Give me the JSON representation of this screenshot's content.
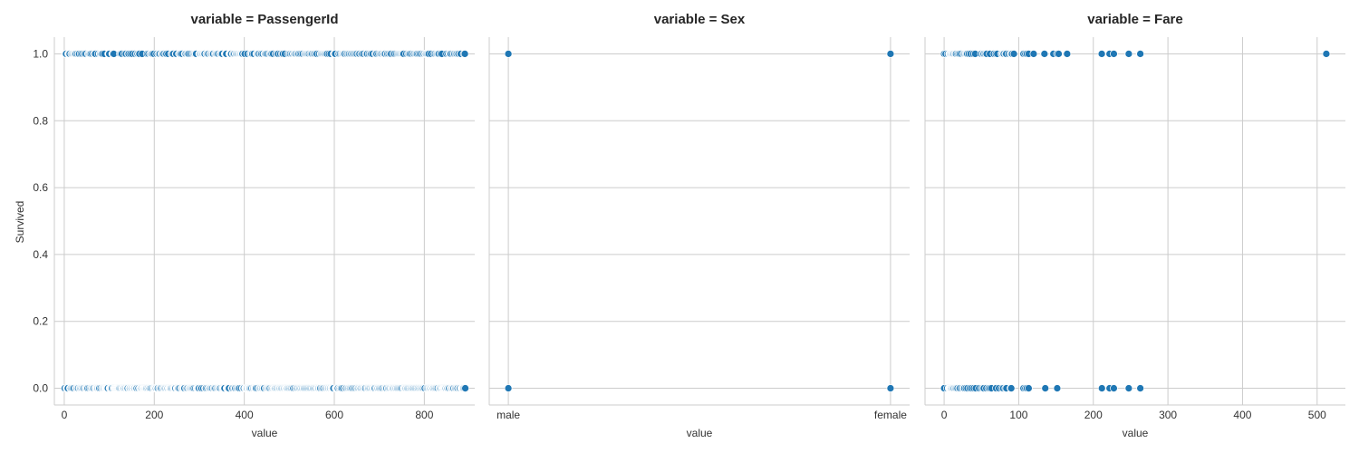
{
  "figure": {
    "ylabel": "Survived",
    "point_color": "#1f77b4",
    "grid_color": "#cccccc"
  },
  "chart_data": [
    {
      "type": "scatter",
      "title": "variable = PassengerId",
      "xlabel": "value",
      "ylabel": "Survived",
      "xlim": [
        -22,
        912
      ],
      "ylim": [
        -0.05,
        1.05
      ],
      "xticks": [
        0,
        200,
        400,
        600,
        800
      ],
      "yticks": [
        0.0,
        0.2,
        0.4,
        0.6,
        0.8,
        1.0
      ],
      "ytick_labels": [
        "0.0",
        "0.2",
        "0.4",
        "0.6",
        "0.8",
        "1.0"
      ],
      "grid": true,
      "points": {
        "survived_1": [
          2,
          3,
          4,
          9,
          10,
          11,
          12,
          16,
          18,
          20,
          22,
          23,
          24,
          26,
          29,
          32,
          33,
          37,
          40,
          44,
          45,
          48,
          53,
          54,
          56,
          57,
          59,
          62,
          66,
          67,
          69,
          75,
          79,
          80,
          82,
          83,
          85,
          89,
          98,
          99,
          100,
          107,
          108,
          110,
          124,
          126,
          128,
          134,
          137,
          142,
          143,
          147,
          151,
          157,
          162,
          163,
          166,
          167,
          173,
          184,
          187,
          191,
          193,
          195,
          196,
          199,
          205,
          209,
          210,
          212,
          216,
          217,
          219,
          221,
          225,
          227,
          231,
          238,
          240,
          242,
          248,
          249,
          255,
          257,
          258,
          259,
          262,
          268,
          269,
          270,
          273,
          275,
          276,
          280,
          284,
          287,
          289,
          290,
          292,
          293,
          300,
          301,
          302,
          304,
          306,
          307,
          308,
          310,
          311,
          312,
          316,
          317,
          319,
          320,
          324,
          326,
          328,
          330,
          331,
          335,
          337,
          338,
          340,
          342,
          346,
          348,
          349,
          351,
          357,
          358,
          359,
          360,
          367,
          368,
          369,
          370,
          371,
          375,
          376,
          378,
          381,
          382,
          384,
          386,
          388,
          390,
          391,
          392,
          394,
          395,
          396,
          400,
          401,
          407,
          413,
          415,
          417,
          418,
          421,
          427,
          428,
          430,
          431,
          432,
          436,
          438,
          441,
          445,
          446,
          447,
          449,
          452,
          456,
          458,
          459,
          461,
          464,
          470,
          473,
          475,
          480,
          484,
          486,
          490,
          497,
          500,
          502,
          505,
          507,
          510,
          511,
          513,
          514,
          517,
          519,
          521,
          524,
          527,
          530,
          534,
          536,
          538,
          540,
          542,
          544,
          547,
          549,
          551,
          554,
          556,
          559,
          561,
          566,
          570,
          571,
          573,
          575,
          577,
          578,
          580,
          582,
          584,
          588,
          592,
          599,
          600,
          601,
          602,
          609,
          610,
          613,
          616,
          618,
          619,
          621,
          622,
          623,
          627,
          628,
          631,
          633,
          636,
          638,
          641,
          642,
          645,
          646,
          649,
          650,
          654,
          656,
          660,
          662,
          665,
          670,
          671,
          673,
          677,
          680,
          682,
          685,
          691,
          692,
          694,
          698,
          701,
          703,
          705,
          708,
          709,
          711,
          713,
          717,
          718,
          721,
          724,
          726,
          731,
          734,
          738,
          741,
          743,
          745,
          747,
          749,
          751,
          752,
          754,
          760,
          764,
          766,
          768,
          771,
          775,
          777,
          780,
          782,
          784,
          787,
          790,
          793,
          797,
          799,
          802,
          803,
          804,
          806,
          808,
          810,
          815,
          821,
          824,
          827,
          829,
          831,
          832,
          836,
          839,
          849,
          853,
          856,
          857,
          859,
          863,
          866,
          867,
          870,
          872,
          875,
          876,
          880,
          881,
          888,
          890
        ],
        "survived_0": [
          1,
          5,
          6,
          7,
          8,
          13,
          14,
          15,
          17,
          19,
          21,
          25,
          27,
          28,
          30,
          31,
          34,
          35,
          36,
          38,
          39,
          41,
          42,
          43,
          46,
          47,
          49,
          50,
          51,
          52,
          55,
          58,
          60,
          61,
          63,
          64,
          65,
          68,
          70,
          71,
          72,
          73,
          74,
          76,
          77,
          78,
          81,
          84,
          86,
          87,
          88,
          90,
          91,
          92,
          93,
          94,
          95,
          96,
          97,
          101,
          102,
          103,
          104,
          105,
          106,
          109,
          111,
          112,
          113,
          114,
          115,
          116,
          117,
          118,
          119,
          120,
          121,
          122,
          123,
          125,
          127,
          129,
          130,
          131,
          132,
          133,
          135,
          136,
          138,
          139,
          140,
          141,
          144,
          145,
          146,
          148,
          149,
          150,
          152,
          153,
          154,
          155,
          156,
          158,
          159,
          160,
          161,
          164,
          165,
          168,
          169,
          170,
          171,
          172,
          174,
          175,
          176,
          177,
          178,
          179,
          180,
          181,
          182,
          183,
          185,
          186,
          188,
          189,
          190,
          192,
          194,
          197,
          198,
          200,
          201,
          202,
          203,
          204,
          206,
          207,
          208,
          211,
          213,
          214,
          215,
          218,
          220,
          222,
          223,
          224,
          226,
          228,
          229,
          230,
          232,
          233,
          234,
          235,
          236,
          237,
          239,
          241,
          243,
          244,
          245,
          246,
          247,
          250,
          251,
          252,
          253,
          254,
          256,
          260,
          261,
          263,
          264,
          265,
          266,
          267,
          271,
          272,
          274,
          277,
          278,
          279,
          281,
          282,
          283,
          285,
          286,
          288,
          291,
          294,
          295,
          296,
          297,
          298,
          299,
          303,
          305,
          309,
          313,
          314,
          315,
          318,
          321,
          322,
          323,
          325,
          327,
          329,
          332,
          333,
          334,
          336,
          339,
          341,
          343,
          344,
          345,
          347,
          350,
          352,
          353,
          354,
          355,
          356,
          361,
          362,
          363,
          364,
          365,
          366,
          372,
          373,
          374,
          377,
          379,
          380,
          383,
          385,
          387,
          389,
          393,
          397,
          398,
          399,
          402,
          403,
          404,
          405,
          406,
          408,
          409,
          410,
          411,
          412,
          414,
          416,
          419,
          420,
          422,
          423,
          424,
          425,
          426,
          429,
          433,
          434,
          435,
          437,
          439,
          440,
          442,
          443,
          444,
          448,
          450,
          451,
          453,
          454,
          455,
          457,
          460,
          462,
          463,
          465,
          466,
          467,
          468,
          469,
          471,
          472,
          474,
          476,
          477,
          478,
          479,
          481,
          482,
          483,
          485,
          487,
          488,
          489,
          491,
          492,
          493,
          494,
          495,
          496,
          498,
          499,
          501,
          503,
          504,
          506,
          508,
          509,
          512,
          515,
          516,
          518,
          520,
          522,
          523,
          525,
          526,
          528,
          529,
          531,
          532,
          533,
          535,
          537,
          539,
          541,
          543,
          545,
          546,
          548,
          550,
          552,
          553,
          555,
          557,
          558,
          560,
          562,
          563,
          564,
          565,
          567,
          568,
          569,
          572,
          574,
          576,
          579,
          581,
          583,
          585,
          586,
          587,
          589,
          590,
          591,
          593,
          594,
          595,
          596,
          597,
          598,
          603,
          604,
          605,
          606,
          607,
          608,
          611,
          612,
          614,
          615,
          617,
          620,
          624,
          625,
          626,
          629,
          630,
          632,
          634,
          635,
          637,
          639,
          640,
          643,
          644,
          647,
          648,
          651,
          652,
          653,
          655,
          657,
          658,
          659,
          661,
          663,
          664,
          666,
          667,
          668,
          669,
          672,
          674,
          675,
          676,
          678,
          679,
          681,
          683,
          684,
          686,
          687,
          688,
          689,
          690,
          693,
          695,
          696,
          697,
          699,
          700,
          702,
          704,
          706,
          707,
          710,
          712,
          714,
          715,
          716,
          719,
          720,
          722,
          723,
          725,
          727,
          728,
          729,
          730,
          732,
          733,
          735,
          736,
          737,
          739,
          740,
          742,
          744,
          746,
          748,
          750,
          753,
          755,
          756,
          757,
          758,
          759,
          761,
          762,
          763,
          765,
          767,
          769,
          770,
          772,
          773,
          774,
          776,
          778,
          779,
          781,
          783,
          785,
          786,
          788,
          789,
          791,
          792,
          794,
          795,
          796,
          798,
          800,
          801,
          805,
          807,
          809,
          811,
          812,
          813,
          814,
          816,
          817,
          818,
          819,
          820,
          822,
          823,
          825,
          826,
          828,
          830,
          833,
          834,
          835,
          837,
          838,
          840,
          841,
          842,
          843,
          844,
          845,
          846,
          847,
          848,
          850,
          851,
          852,
          854,
          855,
          858,
          860,
          861,
          862,
          864,
          865,
          868,
          869,
          871,
          873,
          874,
          877,
          878,
          879,
          882,
          883,
          884,
          885,
          886,
          887,
          889,
          891
        ]
      }
    },
    {
      "type": "scatter",
      "title": "variable = Sex",
      "xlabel": "value",
      "categories": [
        "male",
        "female"
      ],
      "xlim": [
        -0.05,
        1.05
      ],
      "ylim": [
        -0.05,
        1.05
      ],
      "grid": true,
      "points": [
        {
          "x": "male",
          "y": 1
        },
        {
          "x": "male",
          "y": 0
        },
        {
          "x": "female",
          "y": 1
        },
        {
          "x": "female",
          "y": 0
        }
      ]
    },
    {
      "type": "scatter",
      "title": "variable = Fare",
      "xlabel": "value",
      "xlim": [
        -25.6,
        537.9
      ],
      "ylim": [
        -0.05,
        1.05
      ],
      "xticks": [
        0,
        100,
        200,
        300,
        400,
        500
      ],
      "grid": true,
      "points": {
        "survived_1": [
          0,
          2,
          5,
          7,
          7.25,
          7.75,
          7.9,
          8,
          8.05,
          9,
          9.5,
          10.5,
          11.1,
          12,
          13,
          14.4,
          15.2,
          16.1,
          18,
          19.5,
          21,
          23,
          25.9,
          26,
          26.3,
          27.7,
          29,
          30,
          31,
          33,
          35.5,
          39,
          41.6,
          49.5,
          51.9,
          52,
          53.1,
          55,
          56.5,
          57,
          61.4,
          66.6,
          69.3,
          71.3,
          76.7,
          77.9,
          79.2,
          79.7,
          80,
          82.2,
          83.2,
          86.5,
          89.1,
          90,
          91.1,
          93.5,
          106.4,
          108.9,
          110.9,
          113.3,
          120,
          133.7,
          134.5,
          146.5,
          151.6,
          153.5,
          164.9,
          211.3,
          221.8,
          227.5,
          247.5,
          262.4,
          263,
          512.3
        ],
        "survived_0": [
          0,
          4,
          6.2,
          6.5,
          7,
          7.1,
          7.25,
          7.5,
          7.75,
          7.9,
          8.05,
          8.5,
          9,
          9.5,
          10.5,
          11.5,
          12.5,
          13,
          14.5,
          15.5,
          16.7,
          18,
          20.2,
          21,
          23.5,
          25.5,
          26,
          27,
          29.1,
          31.3,
          34.4,
          36.8,
          39.7,
          42.4,
          46.9,
          50,
          52,
          53.1,
          56.5,
          59.4,
          61.2,
          63.4,
          69.6,
          73.5,
          77.3,
          79.2,
          82.2,
          83.5,
          89.1,
          90,
          106.4,
          108.9,
          110.9,
          113.3,
          135.6,
          151.6,
          211.5,
          221.8,
          227.5,
          247.5,
          263
        ]
      }
    }
  ]
}
